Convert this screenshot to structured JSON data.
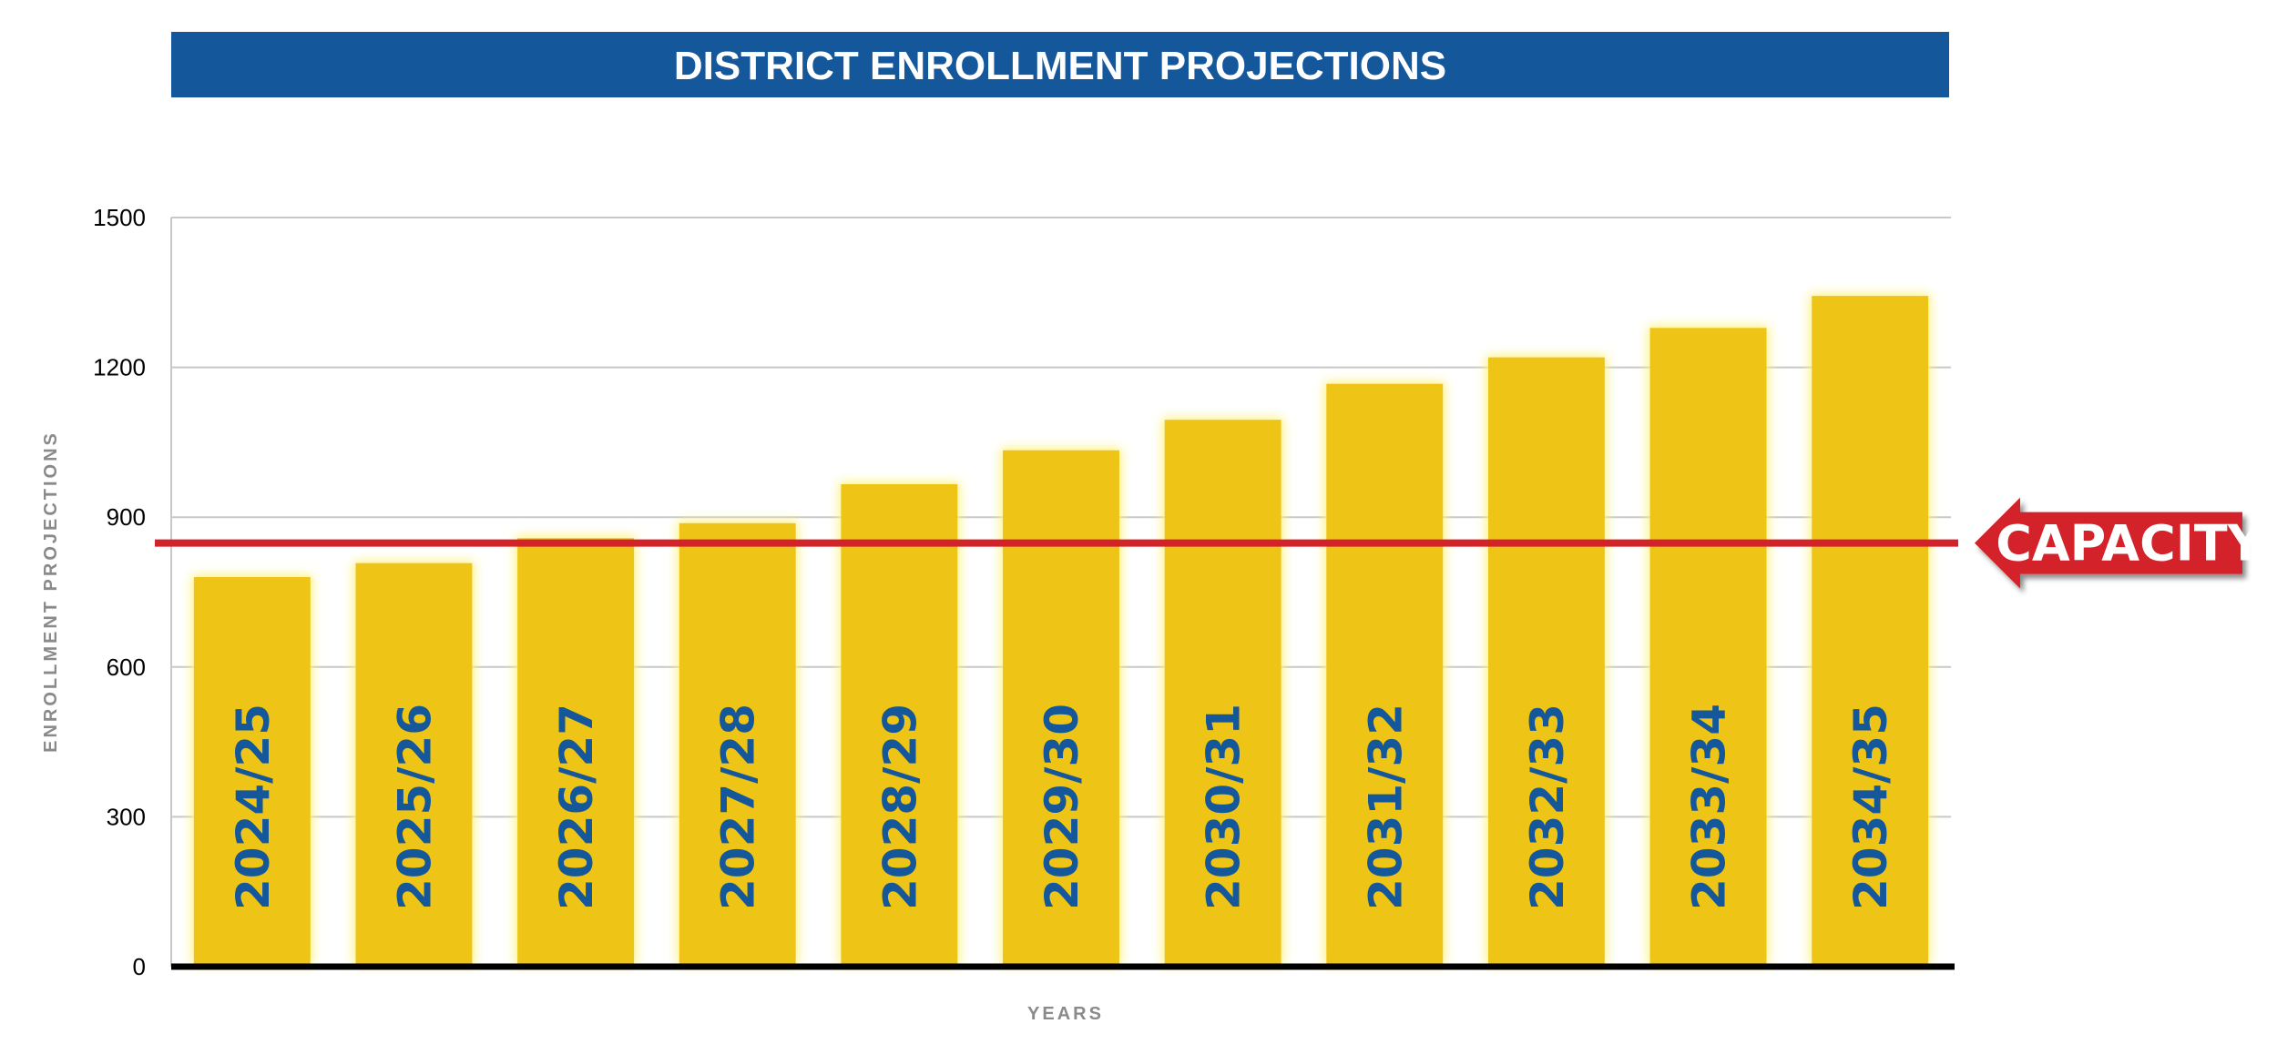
{
  "chart_data": {
    "type": "bar",
    "title": "DISTRICT ENROLLMENT PROJECTIONS",
    "xlabel": "YEARS",
    "ylabel": "ENROLLMENT PROJECTIONS",
    "categories": [
      "2024/25",
      "2025/26",
      "2026/27",
      "2027/28",
      "2028/29",
      "2029/30",
      "2030/31",
      "2031/32",
      "2032/33",
      "2033/34",
      "2034/35"
    ],
    "values": [
      780,
      808,
      858,
      888,
      966,
      1034,
      1095,
      1167,
      1220,
      1279,
      1343
    ],
    "ylim": [
      0,
      1500
    ],
    "yticks": [
      0,
      300,
      600,
      900,
      1200,
      1500
    ],
    "grid": true,
    "capacity": {
      "label": "CAPACITY",
      "value": 870
    },
    "colors": {
      "title_bg": "#14579a",
      "title_text": "#ffffff",
      "bar": "#eec417",
      "bar_glow": "#fff27a",
      "bar_label": "#14579a",
      "capacity": "#d32229",
      "grid": "#c8c8c8",
      "axis": "#000000",
      "axis_title": "#8a8a8a"
    }
  }
}
